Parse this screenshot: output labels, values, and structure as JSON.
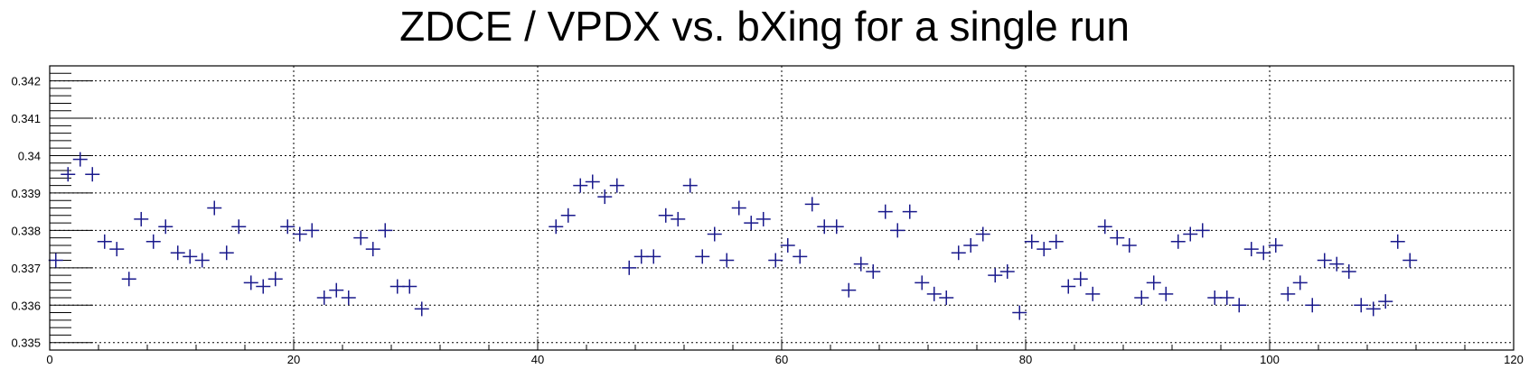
{
  "chart_data": {
    "type": "scatter",
    "title": "ZDCE / VPDX vs. bXing for a single run",
    "xlabel": "",
    "ylabel": "",
    "xlim": [
      0,
      120
    ],
    "ylim": [
      0.3348,
      0.3424
    ],
    "x_ticks": [
      0,
      20,
      40,
      60,
      80,
      100,
      120
    ],
    "y_ticks": [
      0.335,
      0.336,
      0.337,
      0.338,
      0.339,
      0.34,
      0.341,
      0.342
    ],
    "y_tick_labels": [
      "0.335",
      "0.336",
      "0.337",
      "0.338",
      "0.339",
      "0.34",
      "0.341",
      "0.342"
    ],
    "grid": true,
    "marker": "cross",
    "color": "#1a1a8c",
    "series": [
      {
        "x": [
          0,
          1,
          2,
          3,
          4,
          5,
          6,
          7,
          8,
          9,
          10,
          11,
          12,
          13,
          14,
          15,
          16,
          17,
          18,
          19,
          20,
          21,
          22,
          23,
          24,
          25,
          26,
          27,
          28,
          29,
          30,
          41,
          42,
          43,
          44,
          45,
          46,
          47,
          48,
          49,
          50,
          51,
          52,
          53,
          54,
          55,
          56,
          57,
          58,
          59,
          60,
          61,
          62,
          63,
          64,
          65,
          66,
          67,
          68,
          69,
          70,
          71,
          72,
          73,
          74,
          75,
          76,
          77,
          78,
          79,
          80,
          81,
          82,
          83,
          84,
          85,
          86,
          87,
          88,
          89,
          90,
          91,
          92,
          93,
          94,
          95,
          96,
          97,
          98,
          99,
          100,
          101,
          102,
          103,
          104,
          105,
          106,
          107,
          108,
          109,
          110,
          111
        ],
        "y": [
          0.3372,
          0.3395,
          0.3399,
          0.3395,
          0.3377,
          0.3375,
          0.3367,
          0.3383,
          0.3377,
          0.3381,
          0.3374,
          0.3373,
          0.3372,
          0.3386,
          0.3374,
          0.3381,
          0.3366,
          0.3365,
          0.3367,
          0.3381,
          0.3379,
          0.338,
          0.3362,
          0.3364,
          0.3362,
          0.3378,
          0.3375,
          0.338,
          0.3365,
          0.3365,
          0.3359,
          0.3381,
          0.3384,
          0.3392,
          0.3393,
          0.3389,
          0.3392,
          0.337,
          0.3373,
          0.3373,
          0.3384,
          0.3383,
          0.3392,
          0.3373,
          0.3379,
          0.3372,
          0.3386,
          0.3382,
          0.3383,
          0.3372,
          0.3376,
          0.3373,
          0.3387,
          0.3381,
          0.3381,
          0.3364,
          0.3371,
          0.3369,
          0.3385,
          0.338,
          0.3385,
          0.3366,
          0.3363,
          0.3362,
          0.3374,
          0.3376,
          0.3379,
          0.3368,
          0.3369,
          0.3358,
          0.3377,
          0.3375,
          0.3377,
          0.3365,
          0.3367,
          0.3363,
          0.3381,
          0.3378,
          0.3376,
          0.3362,
          0.3366,
          0.3363,
          0.3377,
          0.3379,
          0.338,
          0.3362,
          0.3362,
          0.336,
          0.3375,
          0.3374,
          0.3376,
          0.3363,
          0.3366,
          0.336,
          0.3372,
          0.3371,
          0.3369,
          0.336,
          0.3359,
          0.3361,
          0.3377,
          0.3372
        ]
      }
    ]
  }
}
